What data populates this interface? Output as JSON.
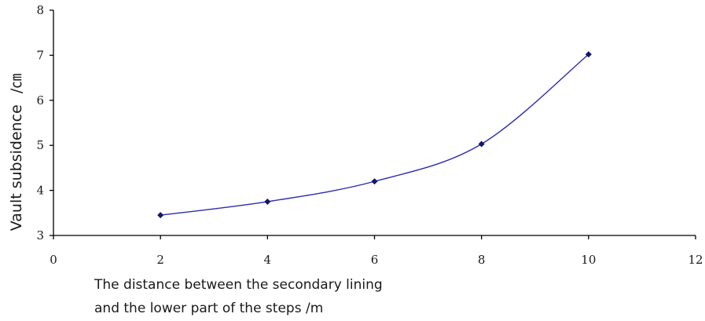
{
  "chart_data": {
    "type": "line",
    "title": "",
    "xlabel": [
      "The distance between the secondary lining",
      "and the lower part of the steps /m"
    ],
    "ylabel_main": "Vault subsidence",
    "ylabel_unit": "/㎝",
    "xlim": [
      0,
      12
    ],
    "ylim": [
      3,
      8
    ],
    "x_ticks": [
      "0",
      "2",
      "4",
      "6",
      "8",
      "10",
      "12"
    ],
    "y_ticks": [
      "3",
      "4",
      "5",
      "6",
      "7",
      "8"
    ],
    "grid": false,
    "series": [
      {
        "x": [
          2,
          4,
          6,
          8,
          10
        ],
        "y": [
          3.45,
          3.75,
          4.2,
          5.03,
          7.02
        ],
        "color": "#2b2bb0",
        "marker": "diamond",
        "marker_color": "#14146e",
        "smooth": true
      }
    ]
  }
}
